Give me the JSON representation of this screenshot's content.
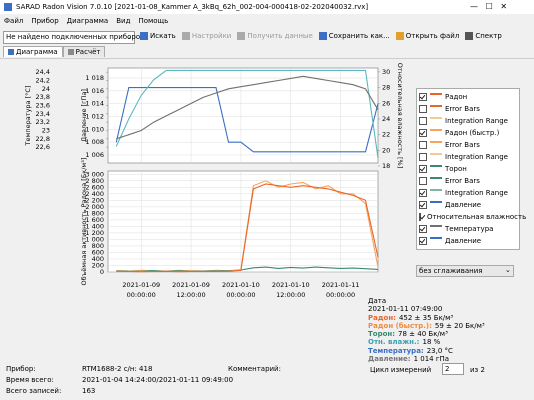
{
  "title_bar": "SARAD Radon Vision 7.0.10 [2021-01-08_Kammer A_3kBq_62h_002-004-000418-02-202040032.rvx]",
  "menu": [
    "Файл",
    "Прибор",
    "Диаграмма",
    "Вид",
    "Помощь"
  ],
  "toolbar": {
    "device_select": "Не найдено подключенных приборов",
    "buttons": [
      "Искать",
      "Настройки",
      "Получить данные",
      "Сохранить как...",
      "Открыть файл",
      "Спектр"
    ]
  },
  "tabs": [
    "Диаграмма",
    "Расчёт"
  ],
  "chart": {
    "type": "line",
    "x": [
      "2021-01-08 18:00",
      "2021-01-08 21:00",
      "2021-01-09 00:00",
      "2021-01-09 03:00",
      "2021-01-09 06:00",
      "2021-01-09 09:00",
      "2021-01-09 12:00",
      "2021-01-09 15:00",
      "2021-01-09 18:00",
      "2021-01-09 21:00",
      "2021-01-10 00:00",
      "2021-01-10 03:00",
      "2021-01-10 06:00",
      "2021-01-10 09:00",
      "2021-01-10 12:00",
      "2021-01-10 15:00",
      "2021-01-10 18:00",
      "2021-01-10 21:00",
      "2021-01-11 00:00",
      "2021-01-11 03:00",
      "2021-01-11 06:00",
      "2021-01-11 09:00"
    ],
    "xlim": [
      "2021-01-08 16:00",
      "2021-01-11 09:00"
    ],
    "xticks": [
      "2021-01-09 00:00:00",
      "2021-01-09 12:00:00",
      "2021-01-10 00:00:00",
      "2021-01-10 12:00:00",
      "2021-01-11 00:00:00"
    ],
    "grid": true,
    "axes": {
      "temperature": {
        "label": "Температура [°C]",
        "ylim": [
          22.22,
          24.5
        ],
        "yticks": [
          {
            "value": 24.4,
            "label": "24,4"
          },
          {
            "value": 24.2,
            "label": "24,2"
          },
          24,
          {
            "value": 23.8,
            "label": "23,8"
          },
          {
            "value": 23.6,
            "label": "23,6"
          },
          {
            "value": 23.4,
            "label": "23,4"
          },
          {
            "value": 23.2,
            "label": "23,2"
          },
          23,
          {
            "value": 22.8,
            "label": "22,8"
          },
          {
            "value": 22.6,
            "label": "22,6"
          }
        ]
      },
      "pressure": {
        "label": "Давление [гПа]",
        "ylim": [
          1004.75,
          1019.56
        ],
        "yticks": [
          {
            "value": 1018,
            "label": "1 018"
          },
          {
            "value": 1016,
            "label": "1 016"
          },
          {
            "value": 1014,
            "label": "1 014"
          },
          {
            "value": 1012,
            "label": "1 012"
          },
          {
            "value": 1010,
            "label": "1 010"
          },
          {
            "value": 1008,
            "label": "1 008"
          },
          {
            "value": 1006,
            "label": "1 006"
          }
        ]
      },
      "humidity": {
        "label": "Относительная влажность [%]",
        "ylim": [
          18.38,
          30.5
        ],
        "yticks": [
          30,
          28,
          26,
          24,
          22,
          20,
          18
        ]
      },
      "radon": {
        "label": "Объёмная активность Радона [Бк/м³]",
        "ylim": [
          0,
          3100
        ],
        "yticks": [
          {
            "value": 3000,
            "label": "3 000"
          },
          {
            "value": 2800,
            "label": "2 800"
          },
          {
            "value": 2600,
            "label": "2 600"
          },
          {
            "value": 2400,
            "label": "2 400"
          },
          {
            "value": 2200,
            "label": "2 200"
          },
          {
            "value": 2000,
            "label": "2 000"
          },
          {
            "value": 1800,
            "label": "1 800"
          },
          {
            "value": 1600,
            "label": "1 600"
          },
          {
            "value": 1400,
            "label": "1 400"
          },
          {
            "value": 1200,
            "label": "1 200"
          },
          {
            "value": 1000,
            "label": "1 000"
          },
          800,
          600,
          400,
          200,
          0
        ]
      }
    },
    "series": [
      {
        "axis": "pressure",
        "color": "#3a6fc4",
        "values": [
          1008,
          1016.5,
          1016.5,
          1016.5,
          1016.5,
          1016.5,
          1016.5,
          1016.5,
          1016.5,
          1008,
          1008,
          1006.5,
          1006.5,
          1006.5,
          1006.5,
          1006.5,
          1006.5,
          1006.5,
          1006.5,
          1006.5,
          1006.5,
          1014
        ]
      },
      {
        "axis": "humidity",
        "color": "#5ab8c0",
        "values": [
          20.5,
          24,
          27,
          29,
          30.2,
          30.2,
          30.2,
          30.2,
          30.2,
          30.2,
          30.2,
          30.2,
          30.2,
          30.2,
          30.2,
          30.2,
          30.2,
          30.2,
          30.2,
          30.2,
          30.2,
          19
        ]
      },
      {
        "axis": "temperature",
        "color": "#707070",
        "values": [
          22.8,
          22.9,
          23,
          23.2,
          23.35,
          23.5,
          23.65,
          23.8,
          23.9,
          24,
          24.05,
          24.1,
          24.15,
          24.2,
          24.25,
          24.3,
          24.25,
          24.2,
          24.15,
          24.1,
          24,
          23.5
        ]
      },
      {
        "axis": "radon",
        "color": "#3a8a6e",
        "values": [
          40,
          30,
          50,
          40,
          30,
          50,
          40,
          30,
          50,
          40,
          60,
          130,
          150,
          110,
          140,
          120,
          150,
          130,
          110,
          120,
          100,
          80
        ]
      },
      {
        "axis": "radon",
        "color": "#f7a35c",
        "values": [
          30,
          20,
          40,
          10,
          30,
          20,
          40,
          10,
          30,
          20,
          80,
          2650,
          2800,
          2600,
          2700,
          2750,
          2550,
          2650,
          2400,
          2400,
          2100,
          150
        ]
      },
      {
        "axis": "radon",
        "color": "#e8662a",
        "values": [
          20,
          15,
          10,
          15,
          20,
          10,
          15,
          20,
          15,
          20,
          50,
          2550,
          2700,
          2650,
          2600,
          2650,
          2600,
          2550,
          2450,
          2350,
          2200,
          450
        ]
      }
    ]
  },
  "legend": [
    {
      "label": "Радон",
      "checked": true,
      "color": "#e8662a"
    },
    {
      "label": "Error Bars",
      "checked": false,
      "color": "#e8662a"
    },
    {
      "label": "Integration Range",
      "checked": false,
      "color": "#f5c89a"
    },
    {
      "label": "Радон (быстр.)",
      "checked": true,
      "color": "#f7a35c"
    },
    {
      "label": "Error Bars",
      "checked": false,
      "color": "#f7a35c"
    },
    {
      "label": "Integration Range",
      "checked": false,
      "color": "#f5c89a"
    },
    {
      "label": "Торон",
      "checked": true,
      "color": "#3a8a6e"
    },
    {
      "label": "Error Bars",
      "checked": false,
      "color": "#3a8a6e"
    },
    {
      "label": "Integration Range",
      "checked": true,
      "color": "#7fb8a0"
    },
    {
      "label": "Давление",
      "checked": true,
      "color": "#3a6fc4"
    },
    {
      "label": "Относительная влажность",
      "checked": true,
      "color": "#5ab8c0"
    },
    {
      "label": "Температура",
      "checked": true,
      "color": "#707070"
    },
    {
      "label": "Давление",
      "checked": true,
      "color": "#3a6fc4"
    }
  ],
  "smoothing": "без сглаживания",
  "info": {
    "date_label": "Дата",
    "date": "2021-01-11 07:49:00",
    "rows": [
      {
        "label": "Радон:",
        "value": "452 ± 35 Бк/м³",
        "color": "#e8662a"
      },
      {
        "label": "Радон (быстр.):",
        "value": "59 ± 20 Бк/м³",
        "color": "#f08a3c"
      },
      {
        "label": "Торон:",
        "value": "78 ± 40 Бк/м³",
        "color": "#3a8a6e"
      },
      {
        "label": "Отн. влажн.:",
        "value": "18 %",
        "color": "#3aa0b0"
      },
      {
        "label": "Температура:",
        "value": "23,0 °C",
        "color": "#3a6fc4"
      },
      {
        "label": "Давление:",
        "value": "1 014 гПа",
        "color": "#777777"
      }
    ]
  },
  "status": {
    "device_label": "Прибор:",
    "device": "RTM1688-2 с/н: 418",
    "time_label": "Время всего:",
    "time": "2021-01-04 14:24:00/2021-01-11 09:49:00",
    "records_label": "Всего записей:",
    "records": "163",
    "comment_label": "Комментарий:",
    "cycle_label": "Цикл измерений",
    "cycle": "2",
    "cycle_of": "из 2"
  }
}
